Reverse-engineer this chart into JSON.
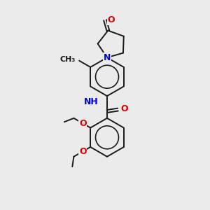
{
  "bg_color": "#ebebeb",
  "bond_color": "#1a1a1a",
  "N_color": "#0000ee",
  "O_color": "#dd0000",
  "bond_lw": 1.4,
  "font_size": 9,
  "figsize": [
    3.0,
    3.0
  ],
  "dpi": 100,
  "xlim": [
    0,
    10
  ],
  "ylim": [
    0,
    10
  ]
}
